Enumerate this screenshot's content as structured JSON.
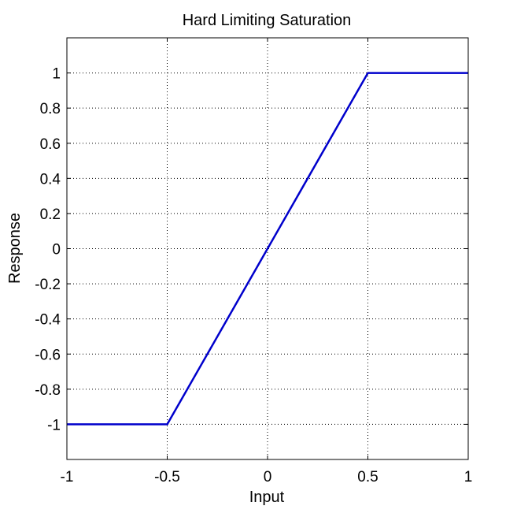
{
  "chart_data": {
    "type": "line",
    "title": "Hard Limiting Saturation",
    "xlabel": "Input",
    "ylabel": "Response",
    "xlim": [
      -1,
      1
    ],
    "ylim": [
      -1.2,
      1.2
    ],
    "x_ticks": [
      "-1",
      "-0.5",
      "0",
      "0.5",
      "1"
    ],
    "x_tick_values": [
      -1,
      -0.5,
      0,
      0.5,
      1
    ],
    "y_ticks": [
      "1",
      "0.8",
      "0.6",
      "0.4",
      "0.2",
      "0",
      "-0.2",
      "-0.4",
      "-0.6",
      "-0.8",
      "-1"
    ],
    "y_tick_values": [
      1,
      0.8,
      0.6,
      0.4,
      0.2,
      0,
      -0.2,
      -0.4,
      -0.6,
      -0.8,
      -1
    ],
    "grid": true,
    "series": [
      {
        "x": [
          -1,
          -0.5,
          0.5,
          1
        ],
        "y": [
          -1,
          -1,
          1,
          1
        ],
        "color": "#0000cc"
      }
    ]
  }
}
